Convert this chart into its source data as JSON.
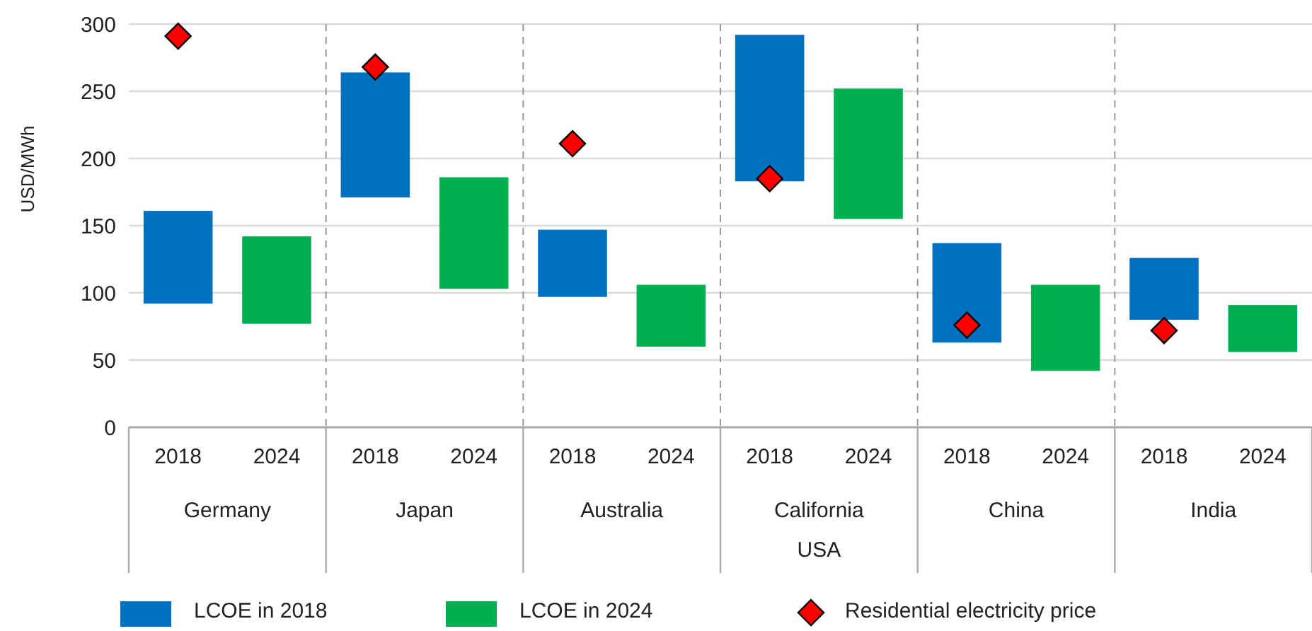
{
  "chart_data": {
    "type": "bar",
    "ylabel": "USD/MWh",
    "categories": [
      "2018",
      "2024",
      "2018",
      "2024",
      "2018",
      "2024",
      "2018",
      "2024",
      "2018",
      "2024",
      "2018",
      "2024"
    ],
    "annotations": [
      "Germany",
      "Japan",
      "Australia",
      "California\nUSA",
      "China",
      "India"
    ],
    "series": [
      {
        "name": "LCOE in 2018",
        "color": "#0070c0",
        "values": [
          69,
          null,
          93,
          null,
          50,
          null,
          109,
          null,
          74,
          null,
          46,
          null
        ],
        "base": [
          92,
          null,
          171,
          null,
          97,
          null,
          183,
          null,
          63,
          null,
          80,
          null
        ]
      },
      {
        "name": "LCOE in 2024",
        "color": "#00b050",
        "values": [
          null,
          65,
          null,
          83,
          null,
          46,
          null,
          97,
          null,
          64,
          null,
          35
        ],
        "base": [
          null,
          77,
          null,
          103,
          null,
          60,
          null,
          155,
          null,
          42,
          null,
          56
        ]
      },
      {
        "name": "Residential electricity price",
        "type": "scatter",
        "marker": "diamond",
        "color": "#ff0000",
        "values": [
          291,
          null,
          268,
          null,
          211,
          null,
          185,
          null,
          76,
          null,
          72,
          null
        ]
      }
    ],
    "ylim": [
      0,
      300
    ],
    "yticks": [
      0,
      50,
      100,
      150,
      200,
      250,
      300
    ],
    "grid": "y",
    "legend": "bottom"
  }
}
